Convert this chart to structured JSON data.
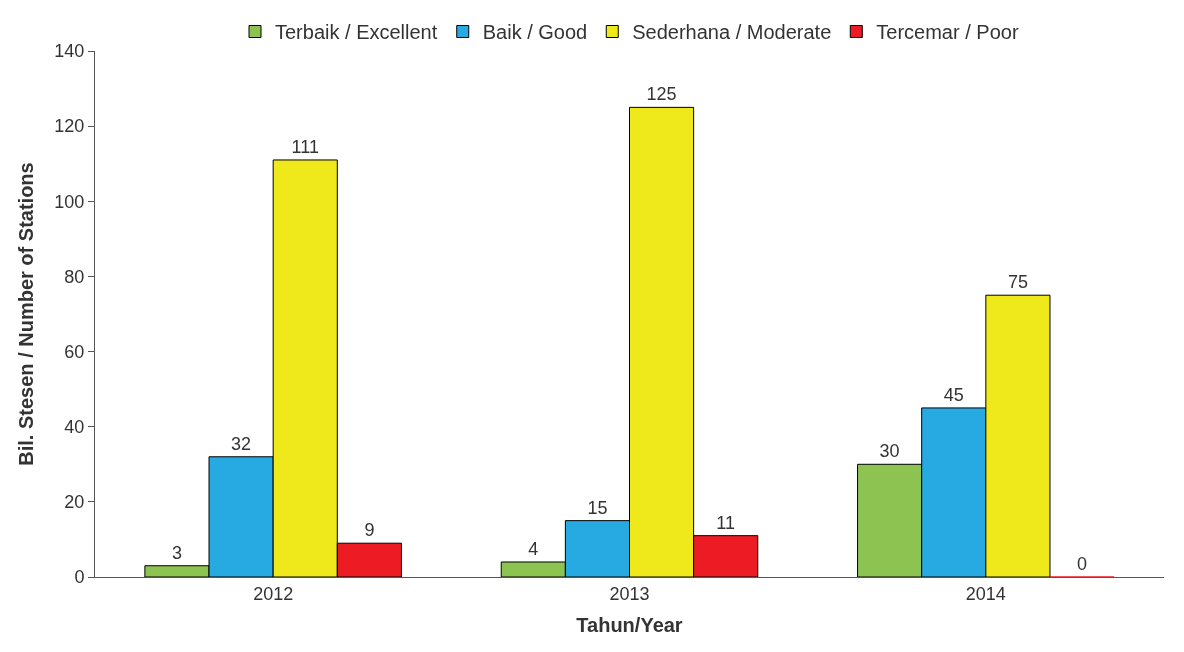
{
  "chart_data": {
    "type": "bar",
    "xlabel": "Tahun/Year",
    "ylabel": "Bil. Stesen / Number of Stations",
    "categories": [
      "2012",
      "2013",
      "2014"
    ],
    "series": [
      {
        "name": "Terbaik / Excellent",
        "color": "#8dc351",
        "values": [
          3,
          4,
          30
        ]
      },
      {
        "name": "Baik / Good",
        "color": "#27aae1",
        "values": [
          32,
          15,
          45
        ]
      },
      {
        "name": "Sederhana / Moderate",
        "color": "#efe81a",
        "values": [
          111,
          125,
          75
        ]
      },
      {
        "name": "Tercemar / Poor",
        "color": "#ed1c24",
        "values": [
          9,
          11,
          0
        ]
      }
    ],
    "ylim": [
      0,
      140
    ],
    "yticks": [
      0,
      20,
      40,
      60,
      80,
      100,
      120,
      140
    ],
    "data_labels": true,
    "legend": "top"
  }
}
